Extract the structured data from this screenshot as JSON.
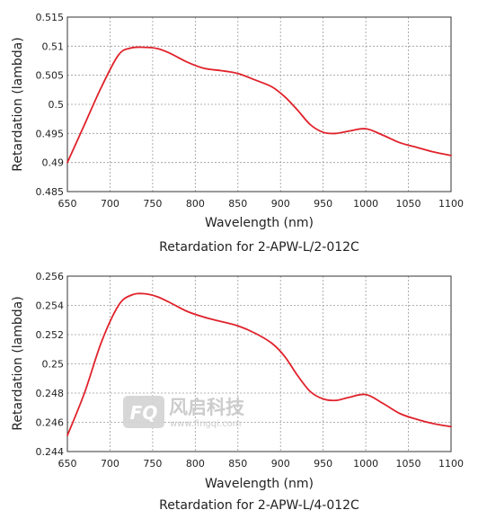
{
  "chart_data": [
    {
      "type": "line",
      "caption": "Retardation for 2-APW-L/2-012C",
      "xlabel": "Wavelength (nm)",
      "ylabel": "Retardation (lambda)",
      "xlim": [
        650,
        1100
      ],
      "ylim": [
        0.485,
        0.515
      ],
      "xticks": [
        "650",
        "700",
        "750",
        "800",
        "850",
        "900",
        "950",
        "1000",
        "1050",
        "1100"
      ],
      "yticks": [
        "0.485",
        "0.49",
        "0.495",
        "0.5",
        "0.505",
        "0.51",
        "0.515"
      ],
      "grid": true,
      "line_color": "#e0222b",
      "series": [
        {
          "x": [
            650,
            670,
            690,
            710,
            725,
            740,
            755,
            770,
            790,
            810,
            830,
            850,
            870,
            890,
            905,
            920,
            935,
            950,
            965,
            980,
            1000,
            1020,
            1040,
            1060,
            1080,
            1100
          ],
          "values": [
            0.49,
            0.4965,
            0.503,
            0.5085,
            0.5097,
            0.5098,
            0.5096,
            0.5088,
            0.5073,
            0.5062,
            0.5058,
            0.5053,
            0.5042,
            0.503,
            0.5013,
            0.499,
            0.4965,
            0.4952,
            0.495,
            0.4954,
            0.4958,
            0.4947,
            0.4934,
            0.4926,
            0.4918,
            0.4912
          ]
        }
      ]
    },
    {
      "type": "line",
      "caption": "Retardation for 2-APW-L/4-012C",
      "xlabel": "Wavelength (nm)",
      "ylabel": "Retardation (lambda)",
      "xlim": [
        650,
        1100
      ],
      "ylim": [
        0.244,
        0.256
      ],
      "xticks": [
        "650",
        "700",
        "750",
        "800",
        "850",
        "900",
        "950",
        "1000",
        "1050",
        "1100"
      ],
      "yticks": [
        "0.244",
        "0.246",
        "0.248",
        "0.25",
        "0.252",
        "0.254",
        "0.256"
      ],
      "grid": true,
      "line_color": "#e0222b",
      "series": [
        {
          "x": [
            650,
            670,
            690,
            710,
            725,
            740,
            755,
            770,
            790,
            810,
            830,
            850,
            870,
            890,
            905,
            920,
            935,
            950,
            965,
            980,
            1000,
            1020,
            1040,
            1060,
            1080,
            1100
          ],
          "values": [
            0.2451,
            0.248,
            0.2515,
            0.254,
            0.2547,
            0.2548,
            0.2546,
            0.2542,
            0.2536,
            0.2532,
            0.2529,
            0.2526,
            0.2521,
            0.2514,
            0.2505,
            0.2492,
            0.2481,
            0.2476,
            0.2475,
            0.2477,
            0.2479,
            0.2473,
            0.2466,
            0.2462,
            0.2459,
            0.2457
          ]
        }
      ]
    }
  ],
  "watermark": {
    "logo_text": "FQ",
    "brand_text": "风启科技",
    "url_text": "www.fingqi.com",
    "color": "#c7c7c7"
  }
}
